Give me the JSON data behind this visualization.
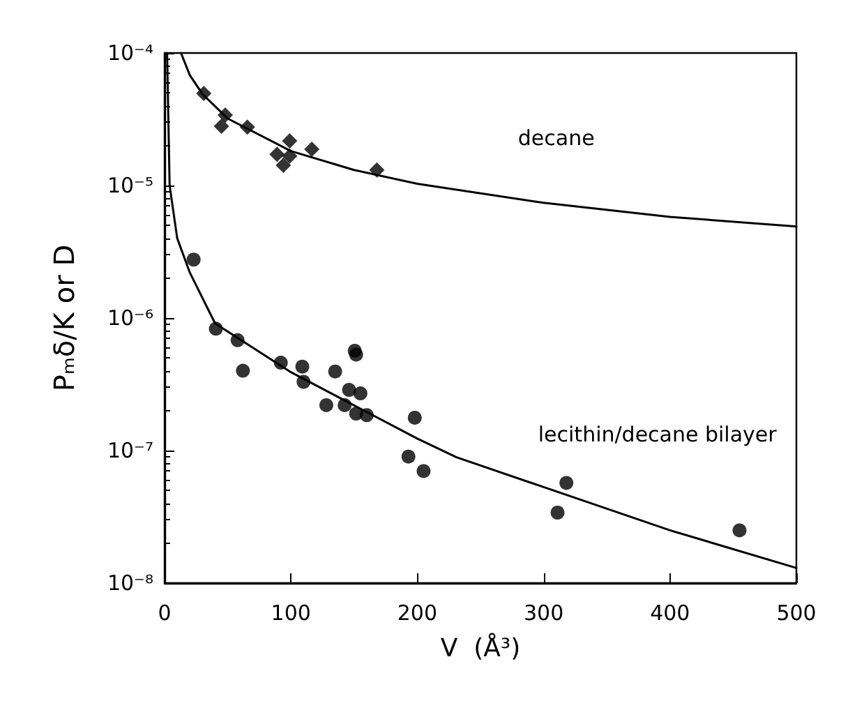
{
  "chart_data": {
    "type": "scatter",
    "xlabel": "V  (Å³)",
    "ylabel": "Pₘδ/K or D",
    "xlim": [
      0,
      500
    ],
    "xticks": [
      0,
      100,
      200,
      300,
      400,
      500
    ],
    "ylim": [
      1e-08,
      0.0001
    ],
    "log": "y",
    "yticks": [
      {
        "value": 1e-08,
        "label": "10⁻⁸"
      },
      {
        "value": 1e-07,
        "label": "10⁻⁷"
      },
      {
        "value": 1e-06,
        "label": "10⁻⁶"
      },
      {
        "value": 1e-05,
        "label": "10⁻⁵"
      },
      {
        "value": 0.0001,
        "label": "10⁻⁴"
      }
    ],
    "grid": false,
    "series": [
      {
        "marker": "diamond",
        "color": "#000000",
        "x": [
          31,
          48,
          45,
          65.5,
          99,
          116.5,
          89,
          99,
          94,
          168
        ],
        "values": [
          4.95e-05,
          3.4e-05,
          2.8e-05,
          2.76e-05,
          2.17e-05,
          1.88e-05,
          1.72e-05,
          1.67e-05,
          1.42e-05,
          1.31e-05
        ]
      },
      {
        "marker": "circle",
        "color": "#000000",
        "x": [
          23,
          40.6,
          57.8,
          62,
          92,
          109,
          110,
          135,
          150.5,
          151.6,
          146,
          155,
          128,
          142.5,
          151.6,
          160,
          198,
          193,
          205,
          318,
          311,
          455
        ],
        "values": [
          2.76e-06,
          8.3e-07,
          6.8e-07,
          4e-07,
          4.6e-07,
          4.3e-07,
          3.3e-07,
          3.95e-07,
          5.66e-07,
          5.3e-07,
          2.87e-07,
          2.7e-07,
          2.2e-07,
          2.2e-07,
          1.9e-07,
          1.85e-07,
          1.77e-07,
          9e-08,
          7e-08,
          5.7e-08,
          3.4e-08,
          2.5e-08
        ]
      },
      {
        "type": "line",
        "marker": "none",
        "line_style": "solid",
        "color": "#000000",
        "x": [
          13,
          20,
          30,
          50,
          100,
          150,
          200,
          300,
          400,
          500
        ],
        "values": [
          0.0001,
          6.8e-05,
          4.9e-05,
          3.2e-05,
          1.82e-05,
          1.31e-05,
          1.03e-05,
          7.4e-06,
          5.8e-06,
          4.9e-06
        ]
      },
      {
        "type": "line",
        "marker": "none",
        "line_style": "solid",
        "color": "#000000",
        "x": [
          2,
          4,
          10,
          20,
          40,
          100,
          200,
          231,
          300,
          400,
          500
        ],
        "values": [
          0.0001,
          1e-05,
          4e-06,
          2.2e-06,
          9.1e-07,
          3.9e-07,
          1.23e-07,
          8.9e-08,
          5.3e-08,
          2.5e-08,
          1.3e-08
        ]
      }
    ],
    "annotations": [
      "decane",
      "lecithin/decane bilayer"
    ]
  }
}
